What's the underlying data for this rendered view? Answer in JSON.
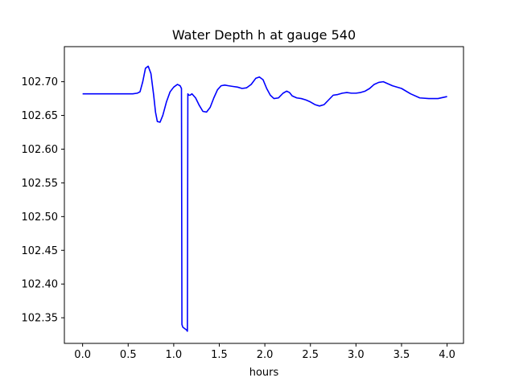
{
  "chart_data": {
    "type": "line",
    "title": "Water Depth h at gauge 540",
    "xlabel": "hours",
    "ylabel": "",
    "xlim": [
      -0.2,
      4.18
    ],
    "ylim": [
      102.312,
      102.752
    ],
    "xticks": [
      0.0,
      0.5,
      1.0,
      1.5,
      2.0,
      2.5,
      3.0,
      3.5,
      4.0
    ],
    "xtick_labels": [
      "0.0",
      "0.5",
      "1.0",
      "1.5",
      "2.0",
      "2.5",
      "3.0",
      "3.5",
      "4.0"
    ],
    "yticks": [
      102.35,
      102.4,
      102.45,
      102.5,
      102.55,
      102.6,
      102.65,
      102.7
    ],
    "ytick_labels": [
      "102.35",
      "102.40",
      "102.45",
      "102.50",
      "102.55",
      "102.60",
      "102.65",
      "102.70"
    ],
    "grid": false,
    "series": [
      {
        "color": "#0000ff",
        "x": [
          0.0,
          0.3,
          0.55,
          0.6,
          0.63,
          0.66,
          0.69,
          0.72,
          0.75,
          0.78,
          0.8,
          0.82,
          0.85,
          0.88,
          0.92,
          0.96,
          1.0,
          1.04,
          1.07,
          1.085,
          1.09,
          1.1,
          1.14,
          1.15,
          1.155,
          1.165,
          1.18,
          1.2,
          1.24,
          1.28,
          1.32,
          1.36,
          1.4,
          1.44,
          1.48,
          1.52,
          1.56,
          1.6,
          1.65,
          1.7,
          1.75,
          1.8,
          1.85,
          1.9,
          1.94,
          1.98,
          2.02,
          2.06,
          2.1,
          2.15,
          2.2,
          2.24,
          2.27,
          2.3,
          2.35,
          2.4,
          2.45,
          2.5,
          2.55,
          2.6,
          2.65,
          2.7,
          2.75,
          2.8,
          2.85,
          2.9,
          2.95,
          3.0,
          3.05,
          3.1,
          3.15,
          3.2,
          3.25,
          3.3,
          3.35,
          3.4,
          3.5,
          3.6,
          3.7,
          3.8,
          3.9,
          4.0
        ],
        "y": [
          102.682,
          102.682,
          102.682,
          102.683,
          102.685,
          102.7,
          102.72,
          102.723,
          102.712,
          102.68,
          102.655,
          102.641,
          102.64,
          102.65,
          102.67,
          102.685,
          102.692,
          102.696,
          102.694,
          102.69,
          102.34,
          102.336,
          102.332,
          102.33,
          102.682,
          102.68,
          102.68,
          102.682,
          102.676,
          102.665,
          102.656,
          102.655,
          102.662,
          102.676,
          102.688,
          102.694,
          102.695,
          102.694,
          102.693,
          102.692,
          102.69,
          102.691,
          102.696,
          102.705,
          102.707,
          102.703,
          102.69,
          102.68,
          102.675,
          102.676,
          102.683,
          102.686,
          102.684,
          102.679,
          102.676,
          102.675,
          102.673,
          102.67,
          102.666,
          102.664,
          102.666,
          102.673,
          102.68,
          102.681,
          102.683,
          102.684,
          102.683,
          102.683,
          102.684,
          102.686,
          102.69,
          102.696,
          102.699,
          102.7,
          102.697,
          102.694,
          102.69,
          102.682,
          102.676,
          102.675,
          102.675,
          102.678
        ]
      }
    ]
  }
}
